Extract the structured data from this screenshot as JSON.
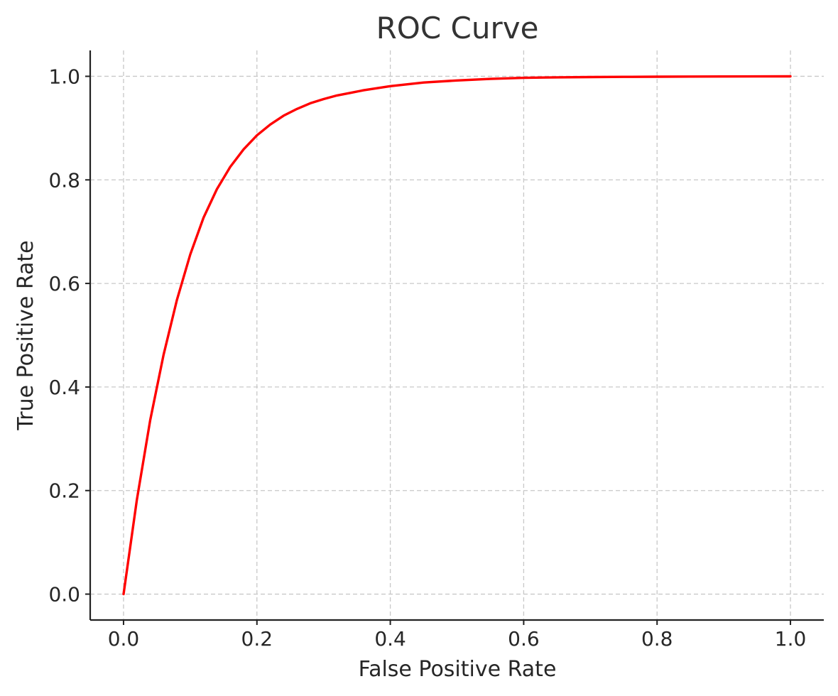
{
  "colors": {
    "roc_curve": "#ff0000"
  },
  "chart_data": {
    "type": "line",
    "title": "ROC Curve",
    "xlabel": "False Positive Rate",
    "ylabel": "True Positive Rate",
    "xlim": [
      -0.05,
      1.05
    ],
    "ylim": [
      -0.05,
      1.05
    ],
    "grid": true,
    "x_ticks": [
      "0.0",
      "0.2",
      "0.4",
      "0.6",
      "0.8",
      "1.0"
    ],
    "y_ticks": [
      "0.0",
      "0.2",
      "0.4",
      "0.6",
      "0.8",
      "1.0"
    ],
    "series": [
      {
        "x": [
          0.0,
          0.02,
          0.04,
          0.06,
          0.08,
          0.1,
          0.12,
          0.14,
          0.16,
          0.18,
          0.2,
          0.22,
          0.24,
          0.26,
          0.28,
          0.3,
          0.32,
          0.34,
          0.36,
          0.38,
          0.4,
          0.45,
          0.5,
          0.55,
          0.6,
          0.65,
          0.7,
          0.75,
          0.8,
          0.85,
          0.9,
          0.95,
          1.0
        ],
        "y": [
          0.0,
          0.182,
          0.336,
          0.462,
          0.568,
          0.656,
          0.727,
          0.782,
          0.825,
          0.859,
          0.886,
          0.907,
          0.924,
          0.937,
          0.948,
          0.956,
          0.963,
          0.968,
          0.973,
          0.977,
          0.981,
          0.988,
          0.992,
          0.995,
          0.997,
          0.998,
          0.9985,
          0.999,
          0.9993,
          0.9995,
          0.9997,
          0.9998,
          0.9999
        ]
      }
    ]
  }
}
